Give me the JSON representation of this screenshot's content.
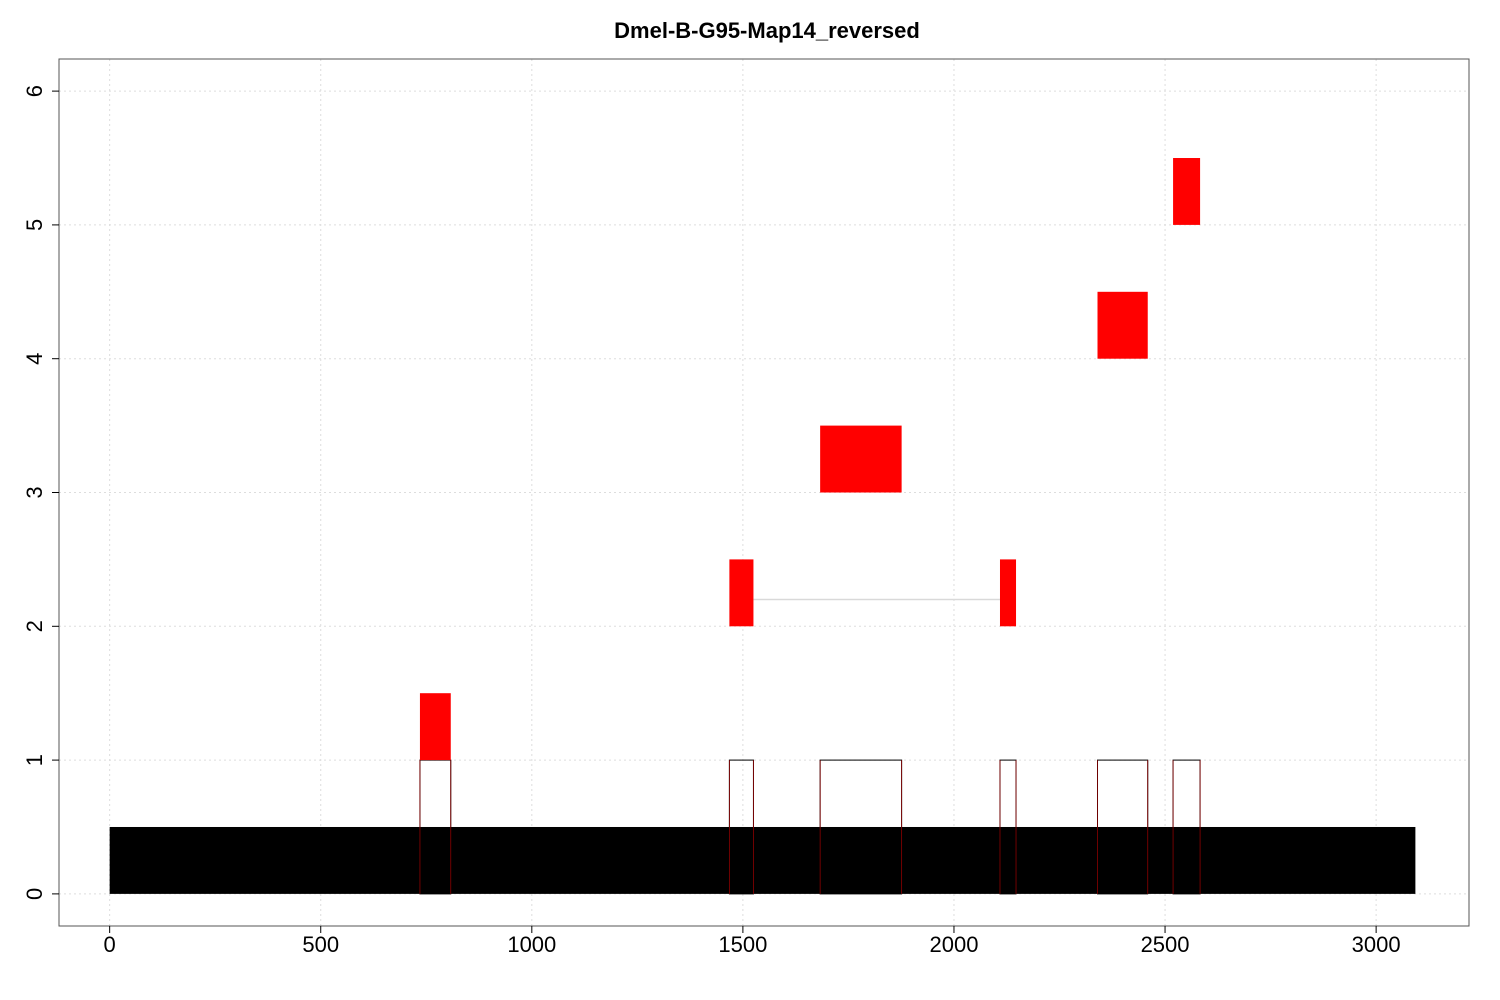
{
  "chart_data": {
    "type": "gene-structure",
    "title": "Dmel-B-G95-Map14_reversed",
    "xlabel": "",
    "ylabel": "",
    "xlim": [
      -120,
      3220
    ],
    "ylim": [
      -0.24,
      6.24
    ],
    "x_ticks": [
      0,
      500,
      1000,
      1500,
      2000,
      2500,
      3000
    ],
    "y_ticks": [
      0,
      1,
      2,
      3,
      4,
      5,
      6
    ],
    "grid": true,
    "sequence_bar": {
      "start": 0,
      "end": 3093,
      "y0": 0,
      "y1": 0.5,
      "color": "#000000"
    },
    "coverage_segments": [
      {
        "start": 735,
        "end": 808,
        "height": 1
      },
      {
        "start": 1468,
        "end": 1525,
        "height": 1
      },
      {
        "start": 1683,
        "end": 1876,
        "height": 1
      },
      {
        "start": 2109,
        "end": 2147,
        "height": 1
      },
      {
        "start": 2340,
        "end": 2459,
        "height": 1
      },
      {
        "start": 2519,
        "end": 2583,
        "height": 1
      }
    ],
    "features": [
      {
        "row": 1,
        "exons": [
          [
            735,
            808
          ]
        ]
      },
      {
        "row": 2,
        "exons": [
          [
            1468,
            1525
          ],
          [
            2109,
            2147
          ]
        ]
      },
      {
        "row": 3,
        "exons": [
          [
            1683,
            1876
          ]
        ]
      },
      {
        "row": 4,
        "exons": [
          [
            2340,
            2459
          ]
        ]
      },
      {
        "row": 5,
        "exons": [
          [
            2519,
            2583
          ]
        ]
      }
    ],
    "colors": {
      "feature": "#ff0000",
      "intron_line": "#d9d9d9",
      "grid": "#dddddd",
      "coverage_outline": "#000000"
    }
  }
}
